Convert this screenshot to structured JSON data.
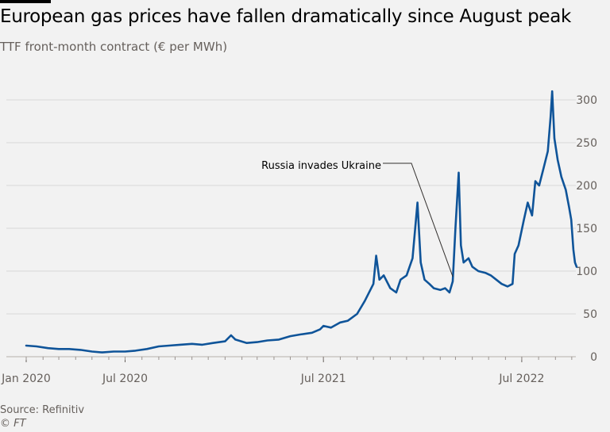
{
  "colors": {
    "background": "#f2f2f2",
    "line": "#0f5499",
    "grid": "#d8d8d8",
    "axis_text": "#66605c",
    "annotation_text": "#000000"
  },
  "chart_data": {
    "type": "line",
    "title": "European gas prices have fallen dramatically since August peak",
    "subtitle": "TTF front-month contract (€ per MWh)",
    "ylim": [
      0,
      320
    ],
    "y_ticks": [
      0,
      50,
      100,
      150,
      200,
      250,
      300
    ],
    "y_axis_position": "right",
    "grid": true,
    "x_tick_labels": [
      "Jan 2020",
      "Jul 2020",
      "Jul 2021",
      "Jul 2022"
    ],
    "x_tick_dates": [
      "2020-01-01",
      "2020-07-01",
      "2021-07-01",
      "2022-07-01"
    ],
    "xlim": [
      "2020-01-01",
      "2022-10-10"
    ],
    "series": [
      {
        "values": [
          [
            "2020-01-01",
            13
          ],
          [
            "2020-01-20",
            12
          ],
          [
            "2020-02-10",
            10
          ],
          [
            "2020-03-01",
            9
          ],
          [
            "2020-03-20",
            9
          ],
          [
            "2020-04-10",
            8
          ],
          [
            "2020-05-01",
            6
          ],
          [
            "2020-05-20",
            5
          ],
          [
            "2020-06-10",
            6
          ],
          [
            "2020-07-01",
            6
          ],
          [
            "2020-07-20",
            7
          ],
          [
            "2020-08-10",
            9
          ],
          [
            "2020-09-01",
            12
          ],
          [
            "2020-09-20",
            13
          ],
          [
            "2020-10-10",
            14
          ],
          [
            "2020-11-01",
            15
          ],
          [
            "2020-11-20",
            14
          ],
          [
            "2020-12-10",
            16
          ],
          [
            "2021-01-01",
            18
          ],
          [
            "2021-01-12",
            25
          ],
          [
            "2021-01-20",
            20
          ],
          [
            "2021-02-10",
            16
          ],
          [
            "2021-03-01",
            17
          ],
          [
            "2021-03-20",
            19
          ],
          [
            "2021-04-10",
            20
          ],
          [
            "2021-05-01",
            24
          ],
          [
            "2021-05-20",
            26
          ],
          [
            "2021-06-10",
            28
          ],
          [
            "2021-06-25",
            32
          ],
          [
            "2021-07-01",
            36
          ],
          [
            "2021-07-15",
            34
          ],
          [
            "2021-08-01",
            40
          ],
          [
            "2021-08-15",
            42
          ],
          [
            "2021-09-01",
            50
          ],
          [
            "2021-09-15",
            65
          ],
          [
            "2021-10-01",
            85
          ],
          [
            "2021-10-06",
            118
          ],
          [
            "2021-10-12",
            90
          ],
          [
            "2021-10-20",
            95
          ],
          [
            "2021-11-01",
            80
          ],
          [
            "2021-11-12",
            75
          ],
          [
            "2021-11-20",
            90
          ],
          [
            "2021-12-01",
            95
          ],
          [
            "2021-12-12",
            115
          ],
          [
            "2021-12-21",
            180
          ],
          [
            "2021-12-27",
            110
          ],
          [
            "2022-01-03",
            90
          ],
          [
            "2022-01-12",
            85
          ],
          [
            "2022-01-20",
            80
          ],
          [
            "2022-02-01",
            78
          ],
          [
            "2022-02-10",
            80
          ],
          [
            "2022-02-18",
            75
          ],
          [
            "2022-02-24",
            88
          ],
          [
            "2022-03-01",
            150
          ],
          [
            "2022-03-07",
            215
          ],
          [
            "2022-03-11",
            130
          ],
          [
            "2022-03-16",
            110
          ],
          [
            "2022-03-25",
            115
          ],
          [
            "2022-04-01",
            105
          ],
          [
            "2022-04-12",
            100
          ],
          [
            "2022-04-25",
            98
          ],
          [
            "2022-05-05",
            95
          ],
          [
            "2022-05-15",
            90
          ],
          [
            "2022-05-25",
            85
          ],
          [
            "2022-06-05",
            82
          ],
          [
            "2022-06-14",
            85
          ],
          [
            "2022-06-18",
            120
          ],
          [
            "2022-06-25",
            130
          ],
          [
            "2022-07-05",
            160
          ],
          [
            "2022-07-12",
            180
          ],
          [
            "2022-07-20",
            165
          ],
          [
            "2022-07-26",
            205
          ],
          [
            "2022-08-02",
            200
          ],
          [
            "2022-08-10",
            220
          ],
          [
            "2022-08-18",
            240
          ],
          [
            "2022-08-23",
            280
          ],
          [
            "2022-08-26",
            310
          ],
          [
            "2022-08-30",
            255
          ],
          [
            "2022-09-05",
            230
          ],
          [
            "2022-09-12",
            210
          ],
          [
            "2022-09-20",
            195
          ],
          [
            "2022-09-26",
            175
          ],
          [
            "2022-09-30",
            160
          ],
          [
            "2022-10-04",
            125
          ],
          [
            "2022-10-07",
            110
          ],
          [
            "2022-10-10",
            105
          ]
        ]
      }
    ],
    "annotations": [
      {
        "text": "Russia invades Ukraine",
        "date": "2022-02-24",
        "value": 88
      }
    ]
  },
  "footer": {
    "source": "Source: Refinitiv",
    "copyright": "© FT"
  }
}
